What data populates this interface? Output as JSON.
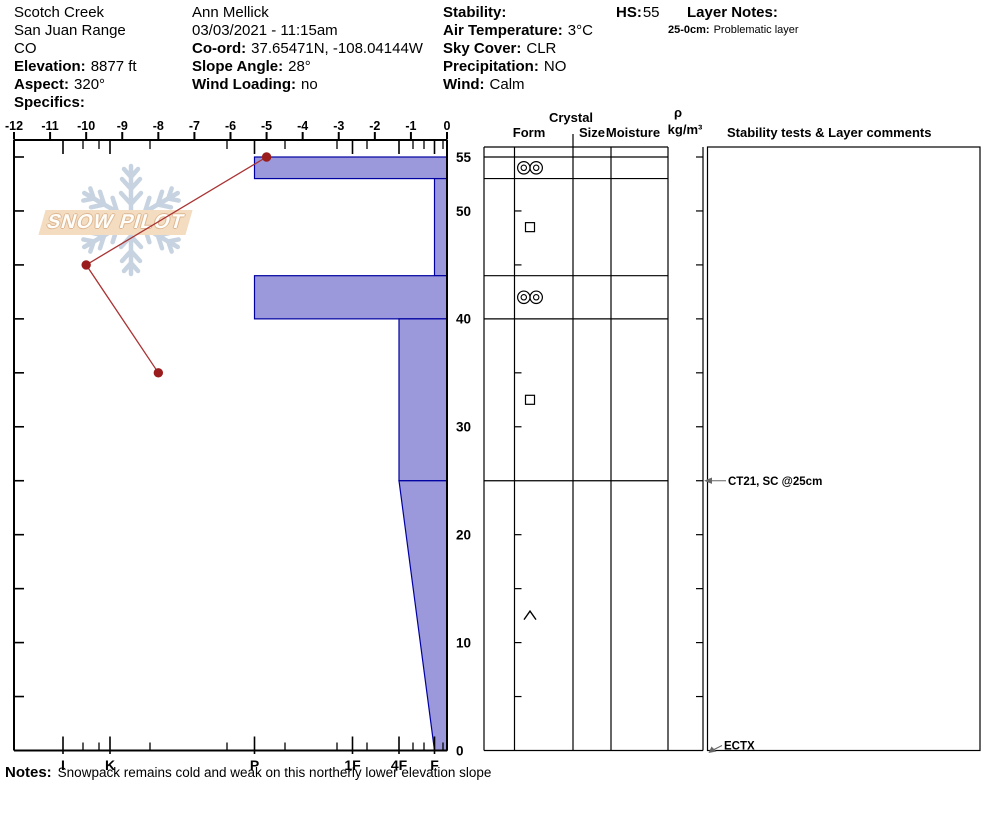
{
  "header": {
    "site": {
      "name": "Scotch Creek",
      "range": "San Juan Range",
      "state": "CO",
      "elevation_label": "Elevation:",
      "elevation_value": "8877 ft",
      "aspect_label": "Aspect:",
      "aspect_value": "320°",
      "specifics_label": "Specifics:",
      "specifics_value": ""
    },
    "observer": {
      "name": "Ann Mellick",
      "datetime": "03/03/2021 - 11:15am",
      "coord_label": "Co-ord:",
      "coord_value": "37.65471N, -108.04144W",
      "slope_label": "Slope Angle:",
      "slope_value": "28°",
      "windload_label": "Wind Loading:",
      "windload_value": "no"
    },
    "conditions": {
      "stability_label": "Stability:",
      "stability_value": "",
      "airtemp_label": "Air Temperature:",
      "airtemp_value": "3°C",
      "sky_label": "Sky Cover:",
      "sky_value": "CLR",
      "precip_label": "Precipitation:",
      "precip_value": "NO",
      "wind_label": "Wind:",
      "wind_value": "Calm"
    },
    "hs": {
      "label": "HS:",
      "value": "55"
    },
    "layer_notes": {
      "title": "Layer Notes:",
      "entries": [
        {
          "label": "25-0cm:",
          "text": "Problematic layer"
        }
      ]
    }
  },
  "table": {
    "crystal_header": "Crystal",
    "form_header": "Form",
    "size_header": "Size",
    "moisture_header": "Moisture",
    "rho_symbol": "ρ",
    "rho_unit": "kg/m³",
    "comments_header": "Stability tests & Layer comments"
  },
  "notes": {
    "label": "Notes:",
    "text": "Snowpack remains cold and weak on this northerly lower elevation slope"
  },
  "watermark": {
    "text": "SNOW PILOT",
    "snowflake_icon": "snowflake"
  },
  "chart_data": {
    "type": "snow-profile",
    "hs_cm": 55,
    "temp_axis": {
      "unit": "°C",
      "min": -12,
      "max": 0,
      "ticks": [
        -12,
        -11,
        -10,
        -9,
        -8,
        -7,
        -6,
        -5,
        -4,
        -3,
        -2,
        -1,
        0
      ]
    },
    "depth_axis": {
      "unit": "cm",
      "max": 55,
      "minor_step": 5,
      "labeled_ticks": [
        55,
        50,
        40,
        30,
        20,
        10,
        0
      ]
    },
    "hardness_axis": {
      "categories": [
        "I",
        "K",
        "P",
        "1F",
        "4F",
        "F"
      ]
    },
    "layers": [
      {
        "top_cm": 55,
        "bottom_cm": 53,
        "hardness": "P",
        "grain_form_code": "MFcr",
        "grain_symbol": "◎◎"
      },
      {
        "top_cm": 53,
        "bottom_cm": 44,
        "hardness": "F",
        "grain_form_code": "FC",
        "grain_symbol": "□"
      },
      {
        "top_cm": 44,
        "bottom_cm": 40,
        "hardness": "P",
        "grain_form_code": "MFcr",
        "grain_symbol": "◎◎"
      },
      {
        "top_cm": 40,
        "bottom_cm": 25,
        "hardness": "4F",
        "grain_form_code": "FC",
        "grain_symbol": "□"
      },
      {
        "top_cm": 25,
        "bottom_cm": 0,
        "hardness_top": "4F",
        "hardness_bottom": "F",
        "grain_form_code": "DH",
        "grain_symbol": "∧"
      }
    ],
    "temperature_profile": [
      {
        "depth_cm": 55,
        "temp_c": -5
      },
      {
        "depth_cm": 45,
        "temp_c": -10
      },
      {
        "depth_cm": 35,
        "temp_c": -8
      }
    ],
    "annotations": [
      {
        "depth_cm": 25,
        "text": "CT21, SC @25cm",
        "arrow": "horizontal"
      },
      {
        "depth_cm": 0,
        "text": "ECTX",
        "arrow": "diagonal"
      }
    ],
    "colors": {
      "layer_fill": "#9b99dc",
      "layer_border": "#0000a0",
      "temp_line": "#aa3333",
      "temp_point": "#9b1c1c",
      "annotation_arrow": "#666666",
      "watermark_flake": "#c2cfdd",
      "watermark_banner": "#f3dcc0"
    }
  }
}
